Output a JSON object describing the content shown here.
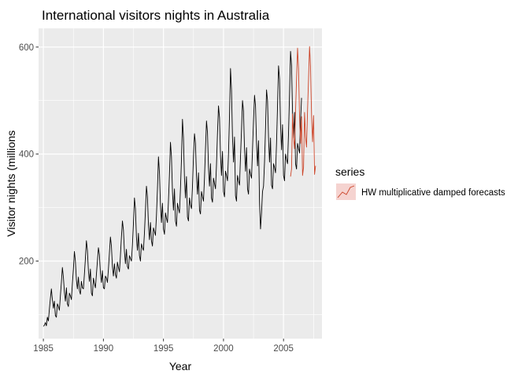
{
  "chart_data": {
    "type": "line",
    "title": "International visitors nights in Australia",
    "xlabel": "Year",
    "ylabel": "Visitor nights (millions",
    "xlim": [
      1984.6,
      2008.2
    ],
    "ylim": [
      55,
      635
    ],
    "x_ticks": [
      1985,
      1990,
      1995,
      2000,
      2005
    ],
    "y_ticks": [
      200,
      400,
      600
    ],
    "x_tick_labels": [
      "1985",
      "1990",
      "1995",
      "2000",
      "2005"
    ],
    "y_tick_labels": [
      "200",
      "400",
      "600"
    ],
    "grid": true,
    "legend": {
      "title": "series",
      "position": "right",
      "entries": [
        "HW multiplicative damped forecasts"
      ]
    },
    "series": [
      {
        "role": "observed",
        "color": "#000000",
        "start": 1985.0,
        "frequency": 12,
        "values": [
          78,
          80,
          85,
          79,
          95,
          88,
          110,
          130,
          148,
          128,
          112,
          125,
          98,
          95,
          120,
          115,
          108,
          135,
          160,
          188,
          170,
          142,
          125,
          150,
          120,
          115,
          140,
          135,
          128,
          158,
          185,
          218,
          200,
          165,
          148,
          170,
          145,
          138,
          162,
          150,
          148,
          175,
          205,
          238,
          220,
          182,
          162,
          185,
          140,
          135,
          168,
          158,
          150,
          175,
          200,
          225,
          212,
          178,
          160,
          182,
          150,
          148,
          172,
          168,
          160,
          185,
          215,
          245,
          228,
          190,
          172,
          195,
          175,
          168,
          198,
          188,
          180,
          210,
          245,
          275,
          258,
          218,
          195,
          222,
          190,
          185,
          210,
          205,
          200,
          230,
          270,
          318,
          298,
          245,
          220,
          252,
          210,
          200,
          232,
          225,
          220,
          252,
          295,
          340,
          320,
          268,
          240,
          272,
          238,
          228,
          262,
          255,
          248,
          285,
          335,
          395,
          365,
          305,
          272,
          308,
          260,
          250,
          290,
          280,
          272,
          312,
          362,
          422,
          395,
          330,
          295,
          335,
          275,
          265,
          308,
          298,
          290,
          335,
          390,
          465,
          430,
          355,
          318,
          358,
          282,
          275,
          318,
          305,
          298,
          340,
          395,
          438,
          420,
          360,
          325,
          365,
          295,
          288,
          330,
          320,
          312,
          355,
          410,
          462,
          440,
          375,
          340,
          382,
          318,
          310,
          355,
          345,
          335,
          380,
          440,
          490,
          468,
          398,
          360,
          405,
          330,
          320,
          368,
          360,
          350,
          400,
          470,
          560,
          520,
          430,
          385,
          432,
          322,
          312,
          360,
          350,
          342,
          395,
          445,
          500,
          480,
          410,
          368,
          412,
          335,
          325,
          372,
          362,
          355,
          408,
          462,
          510,
          490,
          422,
          378,
          425,
          310,
          260,
          290,
          330,
          340,
          385,
          448,
          520,
          500,
          430,
          385,
          430,
          342,
          335,
          382,
          375,
          365,
          420,
          490,
          565,
          540,
          455,
          408,
          455,
          360,
          350,
          400,
          390,
          382,
          440,
          512,
          592,
          565,
          478,
          430,
          478,
          382,
          372,
          420,
          410,
          402,
          462,
          505
        ]
      },
      {
        "role": "forecast",
        "name": "HW multiplicative damped forecasts",
        "color": "#cc4428",
        "start": 2005.5833,
        "frequency": 12,
        "values": [
          358,
          372,
          475,
          430,
          410,
          480,
          540,
          598,
          560,
          470,
          420,
          470,
          360,
          375,
          478,
          432,
          413,
          482,
          542,
          601,
          562,
          472,
          423,
          472,
          362,
          378
        ]
      }
    ]
  }
}
